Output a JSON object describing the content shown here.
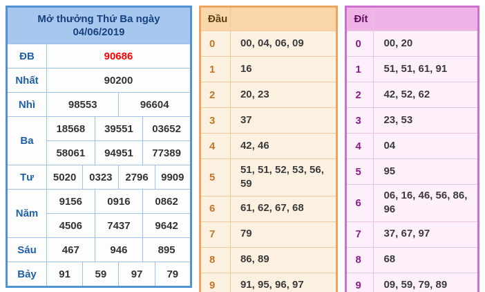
{
  "colors": {
    "prize_border": "#4f93d6",
    "prize_header_bg": "#a6c8ee",
    "prize_label_text": "#2060a8",
    "special_prize_text": "#ff0000",
    "dau_border": "#eda45f",
    "dau_header_bg": "#fbd6ab",
    "dau_digit_text": "#c0762a",
    "dit_border": "#ce6fce",
    "dit_header_bg": "#f0b3e8",
    "dit_digit_text": "#8a1b8a"
  },
  "prize_table": {
    "title_line1": "Mở thưởng Thứ Ba ngày",
    "title_line2": "04/06/2019",
    "rows": [
      {
        "label": "ĐB",
        "cells": [
          "90686"
        ]
      },
      {
        "label": "Nhất",
        "cells": [
          "90200"
        ]
      },
      {
        "label": "Nhì",
        "cells": [
          "98553",
          "96604"
        ]
      },
      {
        "label": "Ba",
        "cells": [
          "18568",
          "39551",
          "03652"
        ]
      },
      {
        "label": "",
        "cells": [
          "58061",
          "94951",
          "77389"
        ]
      },
      {
        "label": "Tư",
        "cells": [
          "5020",
          "0323",
          "2796",
          "9909"
        ]
      },
      {
        "label": "Năm",
        "cells": [
          "9156",
          "0916",
          "0862"
        ]
      },
      {
        "label": "",
        "cells": [
          "4506",
          "7437",
          "9642"
        ]
      },
      {
        "label": "Sáu",
        "cells": [
          "467",
          "946",
          "895"
        ]
      },
      {
        "label": "Bảy",
        "cells": [
          "91",
          "59",
          "97",
          "79"
        ]
      }
    ]
  },
  "dau_table": {
    "header": "Đầu",
    "rows": [
      {
        "digit": "0",
        "numbers": "00, 04, 06, 09"
      },
      {
        "digit": "1",
        "numbers": "16"
      },
      {
        "digit": "2",
        "numbers": "20, 23"
      },
      {
        "digit": "3",
        "numbers": "37"
      },
      {
        "digit": "4",
        "numbers": "42, 46"
      },
      {
        "digit": "5",
        "numbers": "51, 51, 52, 53, 56, 59"
      },
      {
        "digit": "6",
        "numbers": "61, 62, 67, 68"
      },
      {
        "digit": "7",
        "numbers": "79"
      },
      {
        "digit": "8",
        "numbers": "86, 89"
      },
      {
        "digit": "9",
        "numbers": "91, 95, 96, 97"
      }
    ]
  },
  "dit_table": {
    "header": "Đít",
    "rows": [
      {
        "digit": "0",
        "numbers": "00, 20"
      },
      {
        "digit": "1",
        "numbers": "51, 51, 61, 91"
      },
      {
        "digit": "2",
        "numbers": "42, 52, 62"
      },
      {
        "digit": "3",
        "numbers": "23, 53"
      },
      {
        "digit": "4",
        "numbers": "04"
      },
      {
        "digit": "5",
        "numbers": "95"
      },
      {
        "digit": "6",
        "numbers": "06, 16, 46, 56, 86, 96"
      },
      {
        "digit": "7",
        "numbers": "37, 67, 97"
      },
      {
        "digit": "8",
        "numbers": "68"
      },
      {
        "digit": "9",
        "numbers": "09, 59, 79, 89"
      }
    ]
  }
}
